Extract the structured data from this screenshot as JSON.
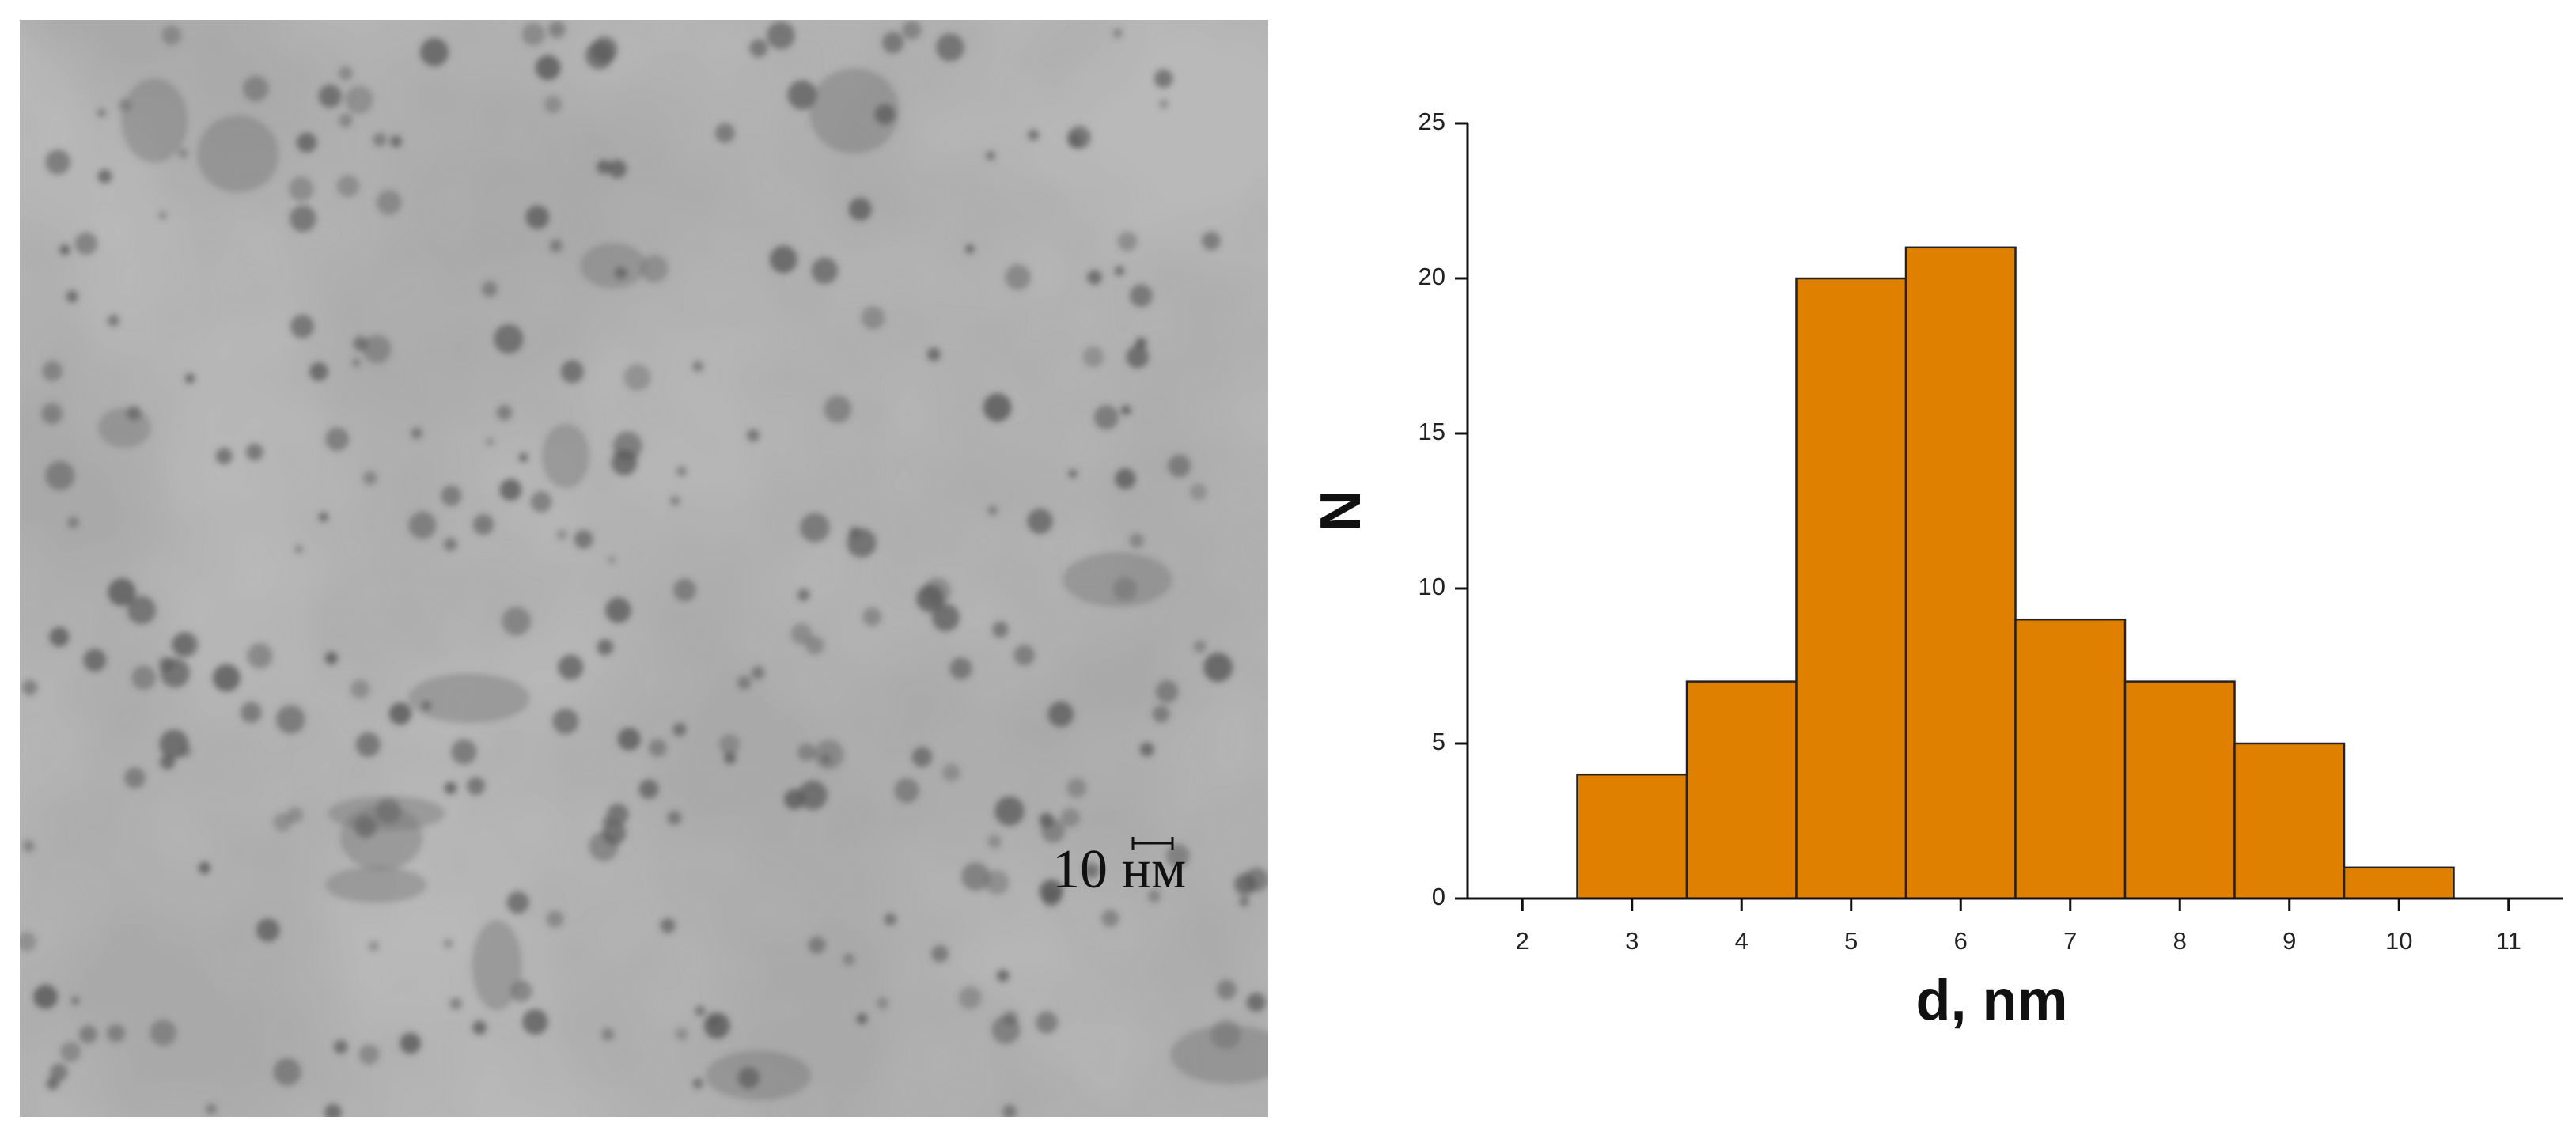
{
  "micrograph": {
    "scale_label": "10 нм"
  },
  "chart_data": {
    "type": "histogram",
    "xlabel": "d, nm",
    "ylabel": "N",
    "bins": [
      2.5,
      3.5,
      4.5,
      5.5,
      6.5,
      7.5,
      8.5,
      9.5,
      10.5
    ],
    "values": [
      4,
      7,
      20,
      21,
      9,
      7,
      5,
      1
    ],
    "color": "#e08000",
    "xlim": [
      1.5,
      11.5
    ],
    "xticks": [
      2,
      3,
      4,
      5,
      6,
      7,
      8,
      9,
      10,
      11
    ],
    "ylim": [
      0,
      25
    ],
    "yticks": [
      0,
      5,
      10,
      15,
      20,
      25
    ]
  }
}
